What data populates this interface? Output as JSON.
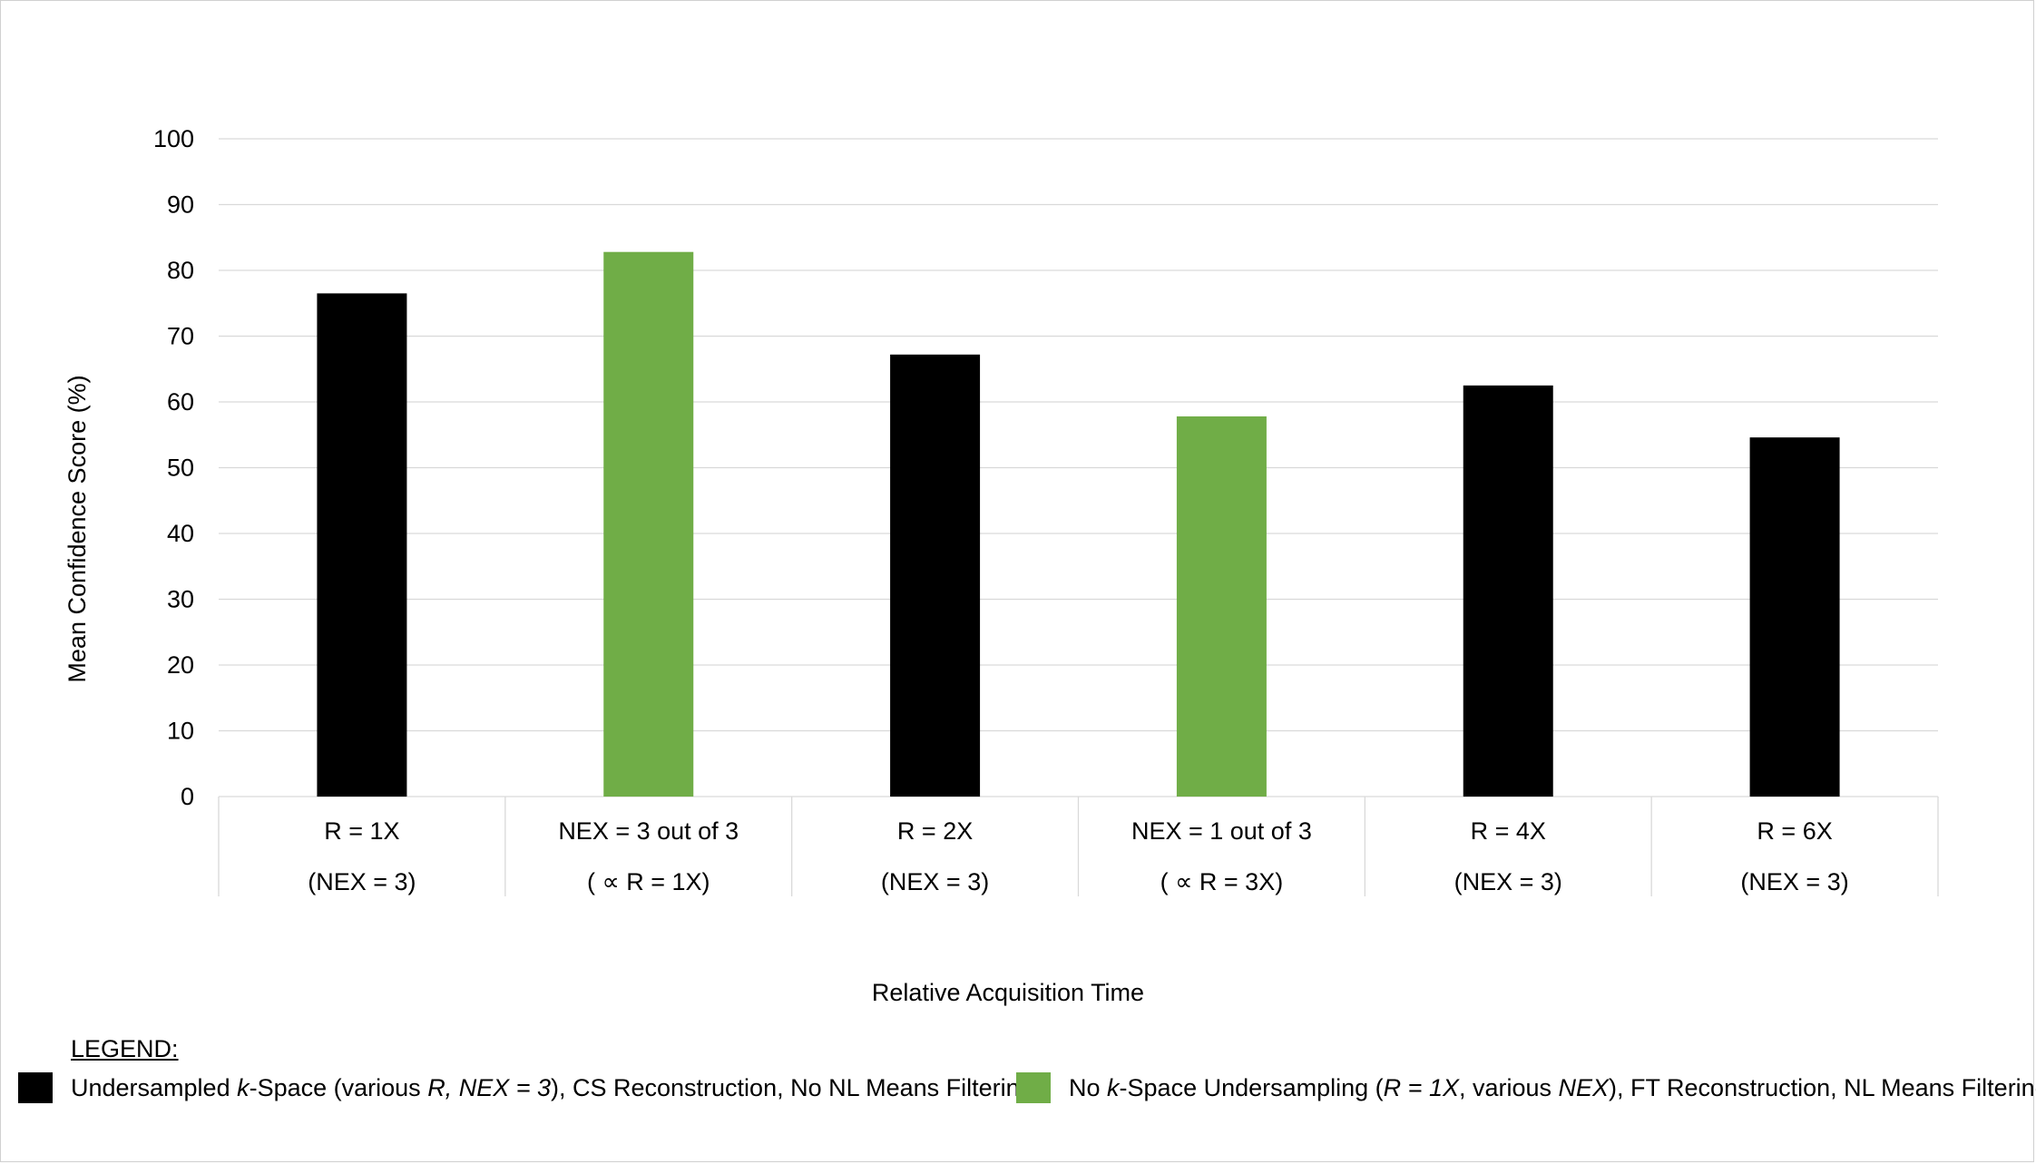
{
  "chart_data": {
    "type": "bar",
    "title": "",
    "xlabel": "Relative Acquisition Time",
    "ylabel": "Mean Confidence Score (%)",
    "ylim": [
      0,
      100
    ],
    "yticks": [
      0,
      10,
      20,
      30,
      40,
      50,
      60,
      70,
      80,
      90,
      100
    ],
    "grid": true,
    "categories": [
      {
        "line1": "R = 1X",
        "line2": "(NEX = 3)",
        "value": 76.5,
        "group": "undersampled"
      },
      {
        "line1": "NEX = 3 out of 3",
        "line2": "( ∝ R = 1X)",
        "value": 82.8,
        "group": "no_undersampling"
      },
      {
        "line1": "R = 2X",
        "line2": "(NEX = 3)",
        "value": 67.2,
        "group": "undersampled"
      },
      {
        "line1": "NEX = 1 out of 3",
        "line2": "( ∝  R = 3X)",
        "value": 57.8,
        "group": "no_undersampling"
      },
      {
        "line1": "R = 4X",
        "line2": "(NEX = 3)",
        "value": 62.5,
        "group": "undersampled"
      },
      {
        "line1": "R = 6X",
        "line2": "(NEX = 3)",
        "value": 54.6,
        "group": "undersampled"
      }
    ],
    "series_colors": {
      "undersampled": "#000000",
      "no_undersampling": "#70ad47"
    }
  },
  "legend": {
    "title": "LEGEND:",
    "items": [
      {
        "color": "#000000",
        "text_a": "Undersampled ",
        "text_b": "k",
        "text_c": "-Space (various ",
        "text_d": "R, NEX = 3",
        "text_e": "), CS Reconstruction,  No NL Means Filtering"
      },
      {
        "color": "#70ad47",
        "text_a": "No ",
        "text_b": "k",
        "text_c": "-Space Undersampling (",
        "text_d": "R = 1X",
        "text_e": ", various ",
        "text_f": "NEX",
        "text_g": "), FT Reconstruction,  NL Means Filtering"
      }
    ]
  }
}
